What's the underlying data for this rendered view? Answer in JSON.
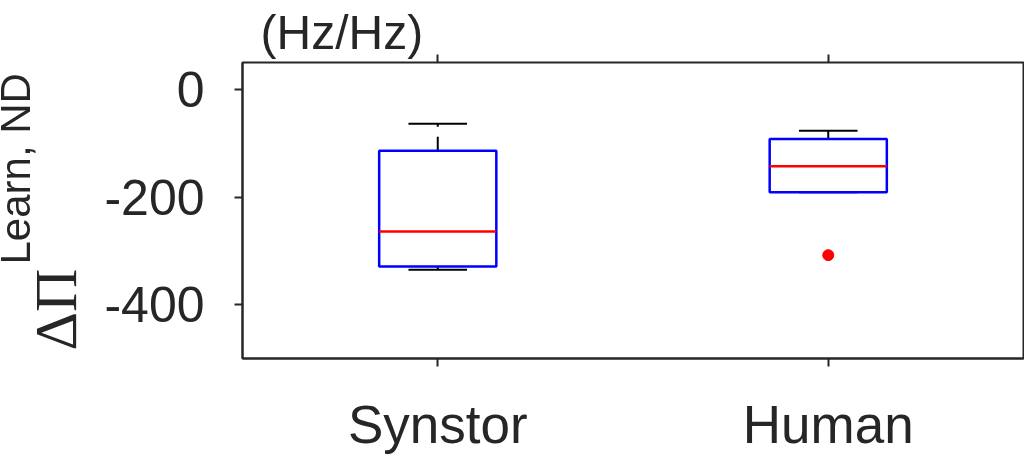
{
  "chart_data": {
    "type": "box",
    "ylabel": "ΔΠ$^{Learn, ND}$",
    "annotations": [
      "(Hz/Hz)"
    ],
    "categories": [
      "Synstor",
      "Human"
    ],
    "boxes": [
      {
        "low": -335,
        "q1": -329,
        "median": -264,
        "q3": -114,
        "high": -64
      },
      {
        "low": -191,
        "q1": -191,
        "median": -143,
        "q3": -92,
        "high": -77,
        "outliers": [
          -308
        ]
      }
    ],
    "color": "#0000ff",
    "marker": "circle",
    "ylim": [
      -500,
      50
    ],
    "yticks": [
      -400,
      -200,
      0
    ]
  }
}
